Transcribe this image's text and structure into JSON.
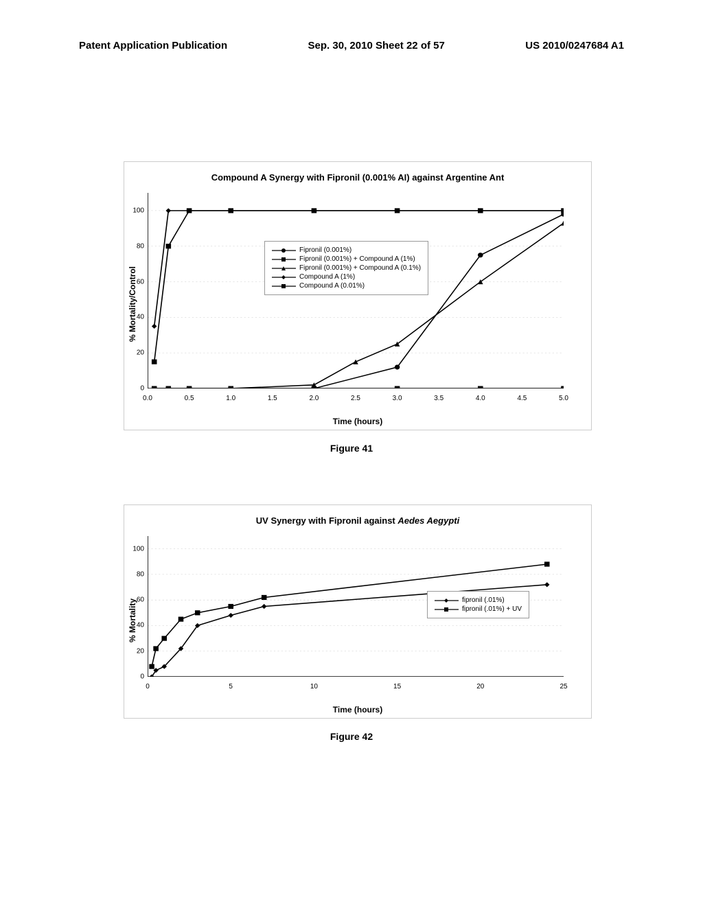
{
  "header": {
    "left": "Patent Application Publication",
    "center": "Sep. 30, 2010  Sheet 22 of 57",
    "right": "US 2010/0247684 A1"
  },
  "figure41": {
    "label": "Figure 41",
    "title": "Compound A Synergy with Fipronil (0.001% AI) against Argentine Ant",
    "ylabel": "% Mortality/Control",
    "xlabel": "Time (hours)",
    "xlim": [
      0,
      5
    ],
    "ylim": [
      0,
      110
    ],
    "xticks": [
      0.0,
      0.5,
      1.0,
      1.5,
      2.0,
      2.5,
      3.0,
      3.5,
      4.0,
      4.5,
      5.0
    ],
    "xticklabels": [
      "0.0",
      "0.5",
      "1.0",
      "1.5",
      "2.0",
      "2.5",
      "3.0",
      "3.5",
      "4.0",
      "4.5",
      "5.0"
    ],
    "yticks": [
      0,
      20,
      40,
      60,
      80,
      100
    ],
    "grid_color": "#cccccc",
    "series": [
      {
        "label": "Fipronil (0.001%)",
        "marker": "circle",
        "color": "#000000",
        "x": [
          0.08,
          0.25,
          0.5,
          1.0,
          2.0,
          3.0,
          4.0,
          5.0
        ],
        "y": [
          0,
          0,
          0,
          0,
          0,
          12,
          75,
          98
        ]
      },
      {
        "label": "Fipronil (0.001%) + Compound A (1%)",
        "marker": "square",
        "color": "#000000",
        "x": [
          0.08,
          0.25,
          0.5,
          1.0,
          2.0,
          3.0,
          4.0,
          5.0
        ],
        "y": [
          15,
          80,
          100,
          100,
          100,
          100,
          100,
          100
        ]
      },
      {
        "label": "Fipronil (0.001%) + Compound A (0.1%)",
        "marker": "triangle",
        "color": "#000000",
        "x": [
          0.08,
          0.25,
          0.5,
          1.0,
          2.0,
          2.5,
          3.0,
          4.0,
          5.0
        ],
        "y": [
          0,
          0,
          0,
          0,
          2,
          15,
          25,
          60,
          93
        ]
      },
      {
        "label": "Compound A (1%)",
        "marker": "diamond",
        "color": "#000000",
        "x": [
          0.08,
          0.25,
          0.5,
          1.0,
          2.0,
          3.0,
          4.0,
          5.0
        ],
        "y": [
          35,
          100,
          100,
          100,
          100,
          100,
          100,
          100
        ]
      },
      {
        "label": "Compound A (0.01%)",
        "marker": "square",
        "color": "#000000",
        "x": [
          0.08,
          0.25,
          0.5,
          1.0,
          2.0,
          3.0,
          4.0,
          5.0
        ],
        "y": [
          0,
          0,
          0,
          0,
          0,
          0,
          0,
          0
        ]
      }
    ]
  },
  "figure42": {
    "label": "Figure 42",
    "title_pre": "UV Synergy with Fipronil against ",
    "title_italic": "Aedes Aegypti",
    "ylabel": "% Mortality",
    "xlabel": "Time (hours)",
    "xlim": [
      0,
      25
    ],
    "ylim": [
      0,
      110
    ],
    "xticks": [
      0,
      5,
      10,
      15,
      20,
      25
    ],
    "xticklabels": [
      "0",
      "5",
      "10",
      "15",
      "20",
      "25"
    ],
    "yticks": [
      0,
      20,
      40,
      60,
      80,
      100
    ],
    "grid_color": "#cccccc",
    "series": [
      {
        "label": "fipronil (.01%)",
        "marker": "diamond",
        "color": "#000000",
        "x": [
          0.25,
          0.5,
          1,
          2,
          3,
          5,
          7,
          24
        ],
        "y": [
          0,
          5,
          8,
          22,
          40,
          48,
          55,
          72
        ]
      },
      {
        "label": "fipronil (.01%) + UV",
        "marker": "square",
        "color": "#000000",
        "x": [
          0.25,
          0.5,
          1,
          2,
          3,
          5,
          7,
          24
        ],
        "y": [
          8,
          22,
          30,
          45,
          50,
          55,
          62,
          88
        ]
      }
    ]
  }
}
